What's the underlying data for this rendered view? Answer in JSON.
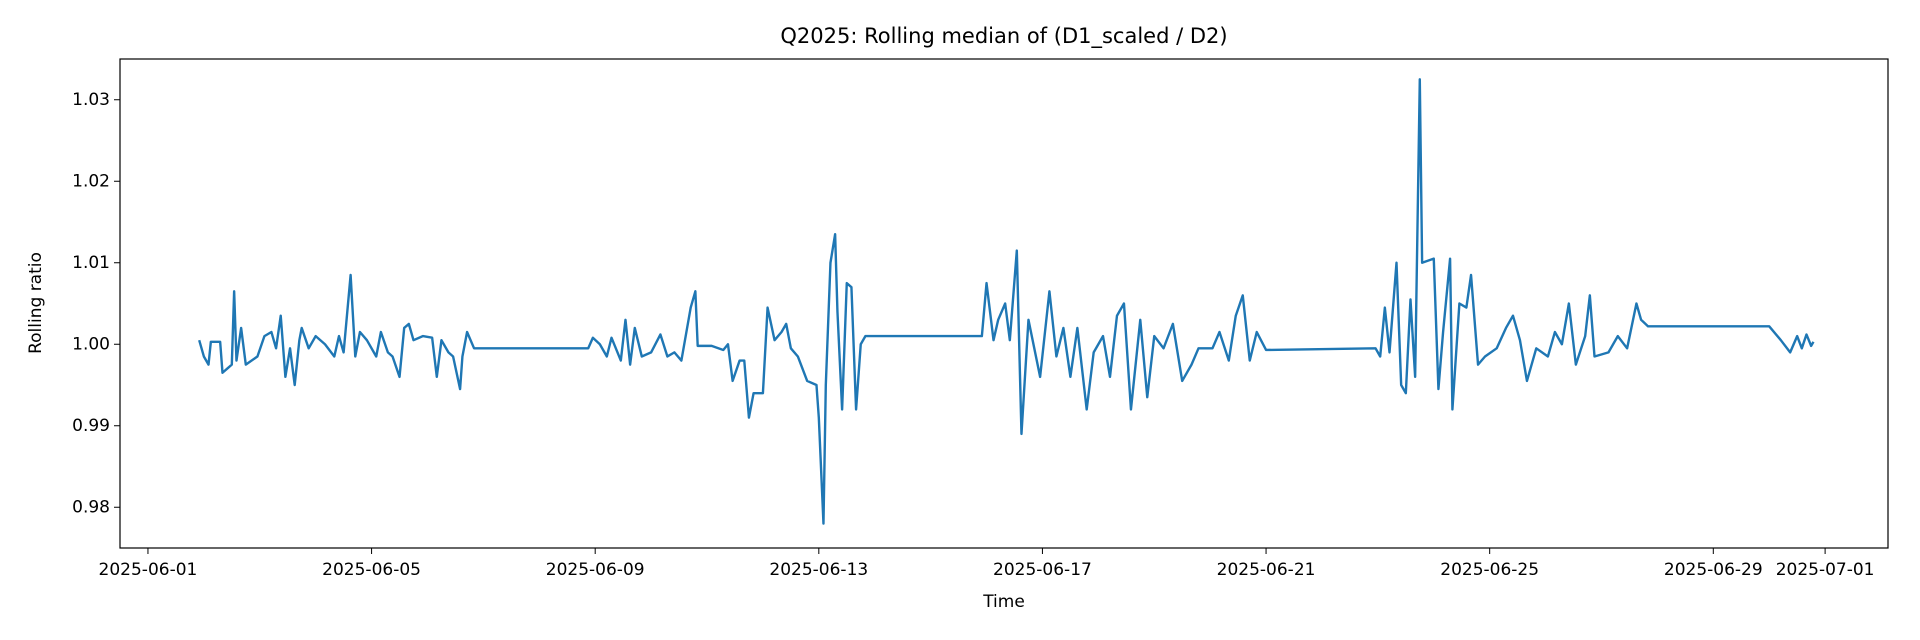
{
  "chart_data": {
    "type": "line",
    "title": "Q2025: Rolling median of (D1_scaled / D2)",
    "xlabel": "Time",
    "ylabel": "Rolling ratio",
    "color": "#1f77b4",
    "grid": false,
    "x": [
      "2025-06-01 22:00",
      "2025-06-02 00:00",
      "2025-06-02 02:00",
      "2025-06-02 03:00",
      "2025-06-02 07:00",
      "2025-06-02 08:00",
      "2025-06-02 10:00",
      "2025-06-02 12:00",
      "2025-06-02 13:00",
      "2025-06-02 14:00",
      "2025-06-02 16:00",
      "2025-06-02 18:00",
      "2025-06-02 23:00",
      "2025-06-03 02:00",
      "2025-06-03 05:00",
      "2025-06-03 07:00",
      "2025-06-03 09:00",
      "2025-06-03 11:00",
      "2025-06-03 13:00",
      "2025-06-03 15:00",
      "2025-06-03 17:00",
      "2025-06-03 18:00",
      "2025-06-03 21:00",
      "2025-06-04 00:00",
      "2025-06-04 04:00",
      "2025-06-04 08:00",
      "2025-06-04 10:00",
      "2025-06-04 12:00",
      "2025-06-04 15:00",
      "2025-06-04 17:00",
      "2025-06-04 19:00",
      "2025-06-04 22:00",
      "2025-06-05 02:00",
      "2025-06-05 04:00",
      "2025-06-05 07:00",
      "2025-06-05 09:00",
      "2025-06-05 12:00",
      "2025-06-05 14:00",
      "2025-06-05 16:00",
      "2025-06-05 18:00",
      "2025-06-05 22:00",
      "2025-06-06 02:00",
      "2025-06-06 04:00",
      "2025-06-06 06:00",
      "2025-06-06 09:00",
      "2025-06-06 11:00",
      "2025-06-06 14:00",
      "2025-06-06 15:00",
      "2025-06-06 17:00",
      "2025-06-06 20:00",
      "2025-06-08 21:00",
      "2025-06-08 23:00",
      "2025-06-09 02:00",
      "2025-06-09 05:00",
      "2025-06-09 07:00",
      "2025-06-09 11:00",
      "2025-06-09 13:00",
      "2025-06-09 15:00",
      "2025-06-09 17:00",
      "2025-06-09 20:00",
      "2025-06-10 00:00",
      "2025-06-10 04:00",
      "2025-06-10 07:00",
      "2025-06-10 10:00",
      "2025-06-10 13:00",
      "2025-06-10 17:00",
      "2025-06-10 19:00",
      "2025-06-10 20:00",
      "2025-06-11 02:00",
      "2025-06-11 07:00",
      "2025-06-11 09:00",
      "2025-06-11 11:00",
      "2025-06-11 14:00",
      "2025-06-11 16:00",
      "2025-06-11 18:00",
      "2025-06-11 20:00",
      "2025-06-12 00:00",
      "2025-06-12 02:00",
      "2025-06-12 05:00",
      "2025-06-12 08:00",
      "2025-06-12 10:00",
      "2025-06-12 12:00",
      "2025-06-12 15:00",
      "2025-06-12 19:00",
      "2025-06-12 23:00",
      "2025-06-13 00:00",
      "2025-06-13 02:00",
      "2025-06-13 03:00",
      "2025-06-13 05:00",
      "2025-06-13 07:00",
      "2025-06-13 08:00",
      "2025-06-13 10:00",
      "2025-06-13 12:00",
      "2025-06-13 14:00",
      "2025-06-13 16:00",
      "2025-06-13 18:00",
      "2025-06-13 20:00",
      "2025-06-15 22:00",
      "2025-06-16 00:00",
      "2025-06-16 03:00",
      "2025-06-16 05:00",
      "2025-06-16 08:00",
      "2025-06-16 10:00",
      "2025-06-16 13:00",
      "2025-06-16 15:00",
      "2025-06-16 18:00",
      "2025-06-16 23:00",
      "2025-06-17 03:00",
      "2025-06-17 06:00",
      "2025-06-17 09:00",
      "2025-06-17 12:00",
      "2025-06-17 15:00",
      "2025-06-17 19:00",
      "2025-06-17 22:00",
      "2025-06-18 02:00",
      "2025-06-18 05:00",
      "2025-06-18 08:00",
      "2025-06-18 11:00",
      "2025-06-18 14:00",
      "2025-06-18 18:00",
      "2025-06-18 21:00",
      "2025-06-19 00:00",
      "2025-06-19 04:00",
      "2025-06-19 08:00",
      "2025-06-19 12:00",
      "2025-06-19 16:00",
      "2025-06-19 19:00",
      "2025-06-20 01:00",
      "2025-06-20 04:00",
      "2025-06-20 08:00",
      "2025-06-20 11:00",
      "2025-06-20 14:00",
      "2025-06-20 17:00",
      "2025-06-20 20:00",
      "2025-06-21 00:00",
      "2025-06-22 23:00",
      "2025-06-23 01:00",
      "2025-06-23 03:00",
      "2025-06-23 05:00",
      "2025-06-23 08:00",
      "2025-06-23 10:00",
      "2025-06-23 12:00",
      "2025-06-23 14:00",
      "2025-06-23 16:00",
      "2025-06-23 18:00",
      "2025-06-23 19:00",
      "2025-06-24 00:00",
      "2025-06-24 02:00",
      "2025-06-24 04:00",
      "2025-06-24 07:00",
      "2025-06-24 08:00",
      "2025-06-24 11:00",
      "2025-06-24 14:00",
      "2025-06-24 16:00",
      "2025-06-24 19:00",
      "2025-06-24 22:00",
      "2025-06-25 03:00",
      "2025-06-25 07:00",
      "2025-06-25 10:00",
      "2025-06-25 13:00",
      "2025-06-25 16:00",
      "2025-06-25 20:00",
      "2025-06-26 01:00",
      "2025-06-26 04:00",
      "2025-06-26 07:00",
      "2025-06-26 10:00",
      "2025-06-26 13:00",
      "2025-06-26 17:00",
      "2025-06-26 19:00",
      "2025-06-26 21:00",
      "2025-06-27 03:00",
      "2025-06-27 07:00",
      "2025-06-27 11:00",
      "2025-06-27 15:00",
      "2025-06-27 17:00",
      "2025-06-27 20:00",
      "2025-06-30 00:00",
      "2025-06-30 05:00",
      "2025-06-30 09:00",
      "2025-06-30 12:00",
      "2025-06-30 14:00",
      "2025-06-30 16:00",
      "2025-06-30 18:00",
      "2025-06-30 19:00"
    ],
    "values": [
      1.0005,
      0.9985,
      0.9975,
      1.0003,
      1.0003,
      0.9965,
      0.997,
      0.9975,
      1.0065,
      0.998,
      1.002,
      0.9975,
      0.9985,
      1.001,
      1.0015,
      0.9995,
      1.0035,
      0.996,
      0.9995,
      0.995,
      1.0005,
      1.002,
      0.9995,
      1.001,
      1.0,
      0.9985,
      1.001,
      0.999,
      1.0085,
      0.9985,
      1.0015,
      1.0005,
      0.9985,
      1.0015,
      0.999,
      0.9985,
      0.996,
      1.002,
      1.0025,
      1.0005,
      1.001,
      1.0008,
      0.996,
      1.0005,
      0.999,
      0.9985,
      0.9945,
      0.9985,
      1.0015,
      0.9995,
      0.9995,
      1.0008,
      1.0,
      0.9985,
      1.0008,
      0.998,
      1.003,
      0.9975,
      1.002,
      0.9985,
      0.999,
      1.0012,
      0.9985,
      0.999,
      0.998,
      1.0045,
      1.0065,
      0.9998,
      0.9998,
      0.9993,
      1.0,
      0.9955,
      0.998,
      0.998,
      0.991,
      0.994,
      0.994,
      1.0045,
      1.0005,
      1.0015,
      1.0025,
      0.9995,
      0.9985,
      0.9955,
      0.995,
      0.991,
      0.978,
      0.995,
      1.01,
      1.0135,
      1.004,
      0.992,
      1.0075,
      1.007,
      0.992,
      1.0,
      1.001,
      1.001,
      1.0075,
      1.0005,
      1.003,
      1.005,
      1.0005,
      1.0115,
      0.989,
      1.003,
      0.996,
      1.0065,
      0.9985,
      1.002,
      0.996,
      1.002,
      0.992,
      0.999,
      1.001,
      0.996,
      1.0035,
      1.005,
      0.992,
      1.003,
      0.9935,
      1.001,
      0.9995,
      1.0025,
      0.9955,
      0.9975,
      0.9995,
      0.9995,
      1.0015,
      0.998,
      1.0035,
      1.006,
      0.998,
      1.0015,
      0.9993,
      0.9995,
      0.9985,
      1.0045,
      0.999,
      1.01,
      0.995,
      0.994,
      1.0055,
      0.996,
      1.0325,
      1.01,
      1.0105,
      0.9945,
      1.0015,
      1.0105,
      0.992,
      1.005,
      1.0045,
      1.0085,
      0.9975,
      0.9985,
      0.9995,
      1.002,
      1.0035,
      1.0005,
      0.9955,
      0.9995,
      0.9985,
      1.0015,
      1.0,
      1.005,
      0.9975,
      1.001,
      1.006,
      0.9985,
      0.999,
      1.001,
      0.9995,
      1.005,
      1.003,
      1.0022,
      1.0022,
      1.0005,
      0.999,
      1.001,
      0.9995,
      1.0012,
      0.9998,
      1.0003
    ],
    "xlim": [
      "2025-05-31 12:00",
      "2025-07-02 03:00"
    ],
    "xticks": [
      "2025-06-01",
      "2025-06-05",
      "2025-06-09",
      "2025-06-13",
      "2025-06-17",
      "2025-06-21",
      "2025-06-25",
      "2025-06-29",
      "2025-07-01"
    ],
    "ylim": [
      0.975,
      1.035
    ],
    "yticks": [
      0.98,
      0.99,
      {
        "value": 1,
        "label": "1.00"
      },
      1.01,
      1.02,
      1.03
    ]
  }
}
